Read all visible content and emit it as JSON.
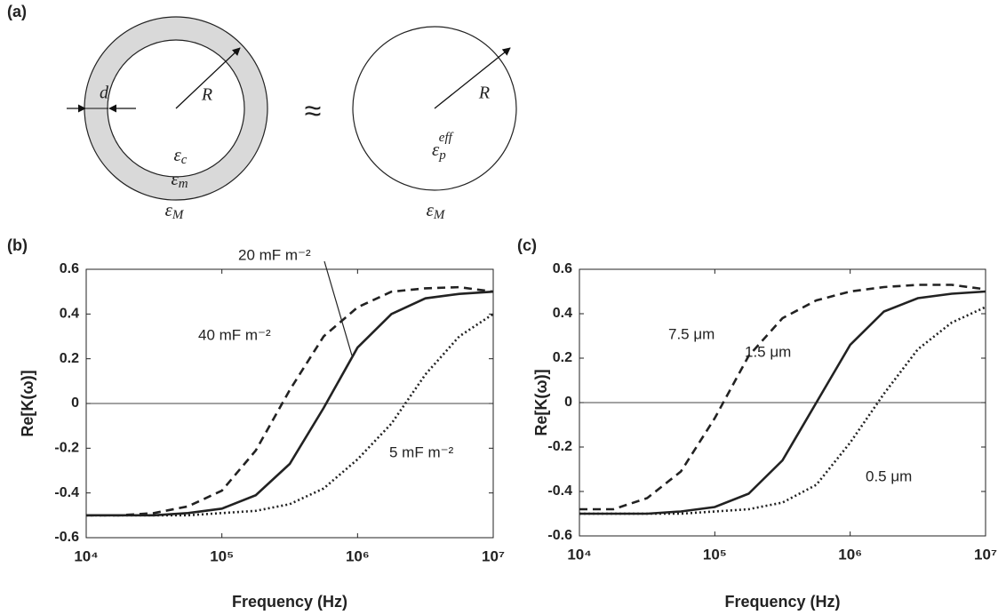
{
  "diagram": {
    "label": "(a)",
    "shell": {
      "d": "d",
      "R": "R",
      "core": {
        "symbol": "ε",
        "sub": "c"
      },
      "membrane": {
        "symbol": "ε",
        "sub": "m"
      },
      "medium": {
        "symbol": "ε",
        "sub": "M"
      }
    },
    "approx": "≈",
    "equivalent": {
      "R": "R",
      "particle": {
        "symbol": "ε",
        "sub": "p",
        "sup": "eff"
      },
      "medium": {
        "symbol": "ε",
        "sub": "M"
      }
    }
  },
  "chart_data": [
    {
      "type": "line",
      "label": "(b)",
      "x_label": "Frequency (Hz)",
      "y_label": "Re[K(ω)]",
      "log_x": true,
      "x": [
        10000,
        17783,
        31623,
        56234,
        100000,
        177828,
        316228,
        562341,
        1000000,
        1778279,
        3162278,
        5623413,
        10000000
      ],
      "series": [
        {
          "style": "dashed",
          "color": "#222222",
          "values": [
            -0.5,
            -0.5,
            -0.49,
            -0.46,
            -0.39,
            -0.21,
            0.06,
            0.3,
            0.43,
            0.5,
            0.515,
            0.52,
            0.5
          ]
        },
        {
          "style": "solid",
          "color": "#222222",
          "values": [
            -0.5,
            -0.5,
            -0.5,
            -0.49,
            -0.47,
            -0.41,
            -0.27,
            -0.02,
            0.25,
            0.4,
            0.47,
            0.49,
            0.5
          ]
        },
        {
          "style": "dotted",
          "color": "#222222",
          "values": [
            -0.5,
            -0.5,
            -0.5,
            -0.5,
            -0.49,
            -0.48,
            -0.45,
            -0.38,
            -0.25,
            -0.09,
            0.13,
            0.3,
            0.4
          ]
        }
      ],
      "annotations": [
        "20 mF m⁻²",
        "40 mF m⁻²",
        "5 mF m⁻²"
      ],
      "hline": 0,
      "xlim": [
        10000,
        10000000
      ],
      "xticks": [
        {
          "value": 10000,
          "label": "10⁴"
        },
        {
          "value": 100000,
          "label": "10⁵"
        },
        {
          "value": 1000000,
          "label": "10⁶"
        },
        {
          "value": 10000000,
          "label": "10⁷"
        }
      ],
      "ylim": [
        -0.6,
        0.6
      ],
      "yticks": [
        -0.6,
        -0.4,
        -0.2,
        0,
        0.2,
        0.4,
        0.6
      ]
    },
    {
      "type": "line",
      "label": "(c)",
      "x_label": "Frequency (Hz)",
      "y_label": "Re[K(ω)]",
      "log_x": true,
      "x": [
        10000,
        17783,
        31623,
        56234,
        100000,
        177828,
        316228,
        562341,
        1000000,
        1778279,
        3162278,
        5623413,
        10000000
      ],
      "series": [
        {
          "style": "dashed",
          "color": "#222222",
          "values": [
            -0.48,
            -0.48,
            -0.43,
            -0.31,
            -0.07,
            0.21,
            0.38,
            0.46,
            0.5,
            0.52,
            0.53,
            0.53,
            0.51
          ]
        },
        {
          "style": "solid",
          "color": "#222222",
          "values": [
            -0.5,
            -0.5,
            -0.5,
            -0.49,
            -0.47,
            -0.41,
            -0.26,
            0.0,
            0.26,
            0.41,
            0.47,
            0.49,
            0.5
          ]
        },
        {
          "style": "dotted",
          "color": "#222222",
          "values": [
            -0.5,
            -0.5,
            -0.5,
            -0.5,
            -0.49,
            -0.48,
            -0.45,
            -0.37,
            -0.18,
            0.04,
            0.24,
            0.36,
            0.43
          ]
        }
      ],
      "annotations": [
        "7.5 μm",
        "1.5 μm",
        "0.5 μm"
      ],
      "hline": 0,
      "xlim": [
        10000,
        10000000
      ],
      "xticks": [
        {
          "value": 10000,
          "label": "10⁴"
        },
        {
          "value": 100000,
          "label": "10⁵"
        },
        {
          "value": 1000000,
          "label": "10⁶"
        },
        {
          "value": 10000000,
          "label": "10⁷"
        }
      ],
      "ylim": [
        -0.6,
        0.6
      ],
      "yticks": [
        -0.6,
        -0.4,
        -0.2,
        0,
        0.2,
        0.4,
        0.6
      ]
    }
  ]
}
